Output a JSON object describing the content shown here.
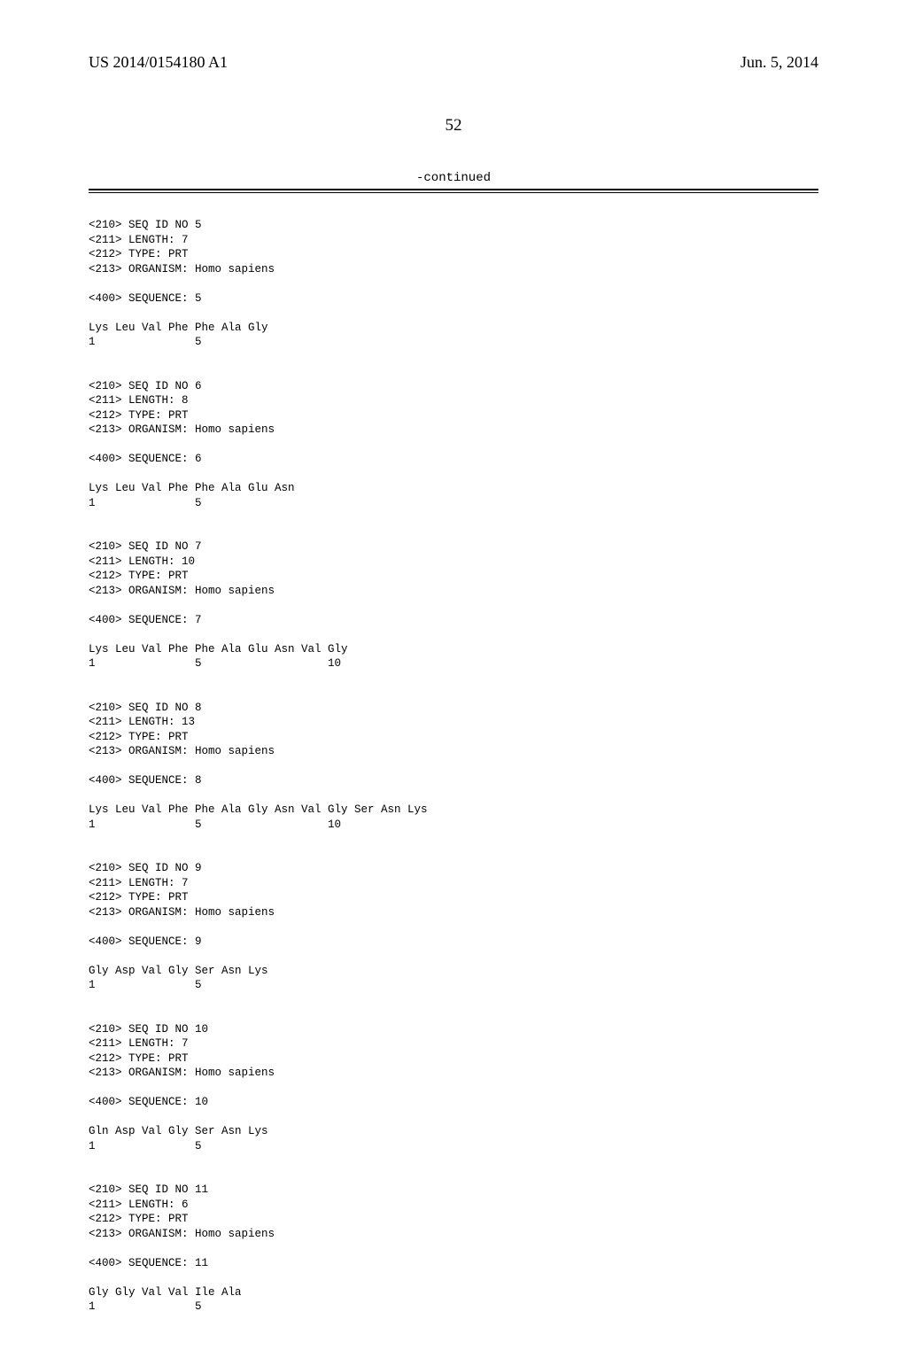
{
  "header": {
    "publication_number": "US 2014/0154180 A1",
    "publication_date": "Jun. 5, 2014"
  },
  "page_number": "52",
  "continued_label": "-continued",
  "sequences": [
    {
      "seq_id_no": "5",
      "length": "7",
      "type": "PRT",
      "organism": "Homo sapiens",
      "sequence_no": "5",
      "residues": "Lys Leu Val Phe Phe Ala Gly",
      "positions": "1               5"
    },
    {
      "seq_id_no": "6",
      "length": "8",
      "type": "PRT",
      "organism": "Homo sapiens",
      "sequence_no": "6",
      "residues": "Lys Leu Val Phe Phe Ala Glu Asn",
      "positions": "1               5"
    },
    {
      "seq_id_no": "7",
      "length": "10",
      "type": "PRT",
      "organism": "Homo sapiens",
      "sequence_no": "7",
      "residues": "Lys Leu Val Phe Phe Ala Glu Asn Val Gly",
      "positions": "1               5                   10"
    },
    {
      "seq_id_no": "8",
      "length": "13",
      "type": "PRT",
      "organism": "Homo sapiens",
      "sequence_no": "8",
      "residues": "Lys Leu Val Phe Phe Ala Gly Asn Val Gly Ser Asn Lys",
      "positions": "1               5                   10"
    },
    {
      "seq_id_no": "9",
      "length": "7",
      "type": "PRT",
      "organism": "Homo sapiens",
      "sequence_no": "9",
      "residues": "Gly Asp Val Gly Ser Asn Lys",
      "positions": "1               5"
    },
    {
      "seq_id_no": "10",
      "length": "7",
      "type": "PRT",
      "organism": "Homo sapiens",
      "sequence_no": "10",
      "residues": "Gln Asp Val Gly Ser Asn Lys",
      "positions": "1               5"
    },
    {
      "seq_id_no": "11",
      "length": "6",
      "type": "PRT",
      "organism": "Homo sapiens",
      "sequence_no": "11",
      "residues": "Gly Gly Val Val Ile Ala",
      "positions": "1               5"
    }
  ]
}
